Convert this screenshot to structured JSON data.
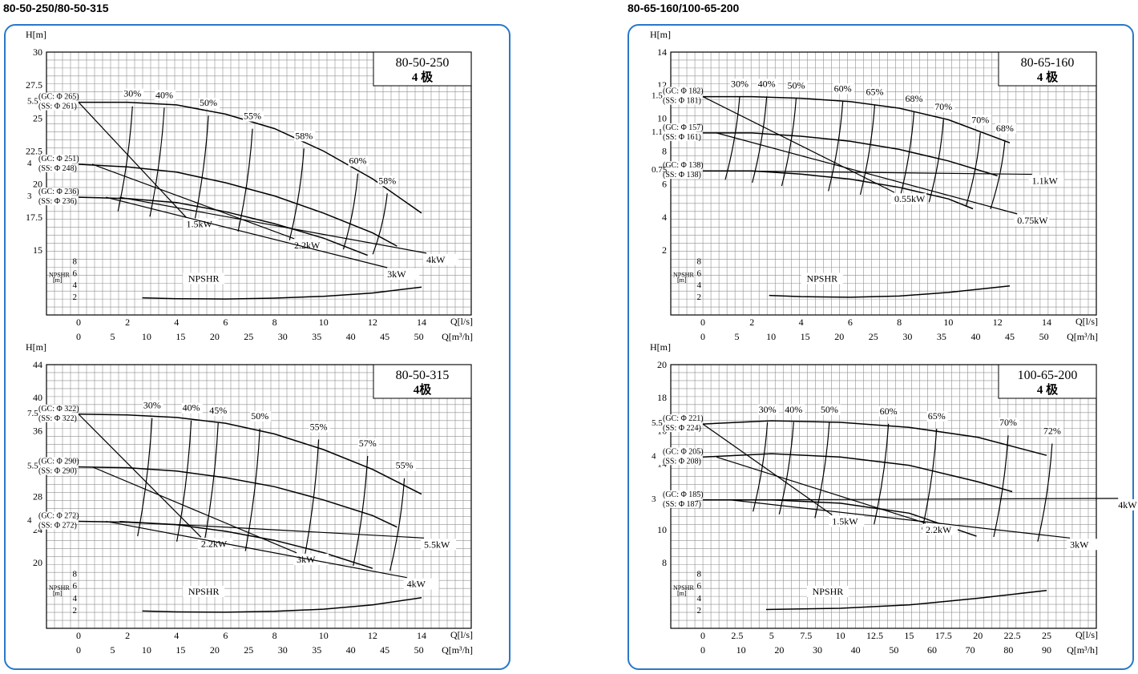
{
  "sections": [
    {
      "title": "80-50-250/80-50-315"
    },
    {
      "title": "80-65-160/100-65-200"
    }
  ],
  "chart_data": [
    {
      "type": "line",
      "model": "80-50-250",
      "poles": "4 极",
      "ylabel": "H[m]",
      "xlabel": "Q[l/s]",
      "xlabel2": "Q[m³/h]",
      "npsh_label": "NPSHR",
      "npsh_unit": "NPSHR [m]",
      "ylim": [
        15,
        30
      ],
      "yticks": [
        "15",
        "17.5",
        "20",
        "22.5",
        "25",
        "27.5",
        "30"
      ],
      "xlim": [
        0,
        14
      ],
      "xticks": [
        "0",
        "2",
        "4",
        "6",
        "8",
        "10",
        "12",
        "14"
      ],
      "x2ticks": [
        "0",
        "5",
        "10",
        "15",
        "20",
        "25",
        "30",
        "35",
        "40",
        "45",
        "50"
      ],
      "x2max": 50.4,
      "npsh_ticks": [
        "2",
        "4",
        "6",
        "8"
      ],
      "series": [
        {
          "label": "5.5",
          "sub": [
            "(GC: Φ 265)",
            "(SS: Φ 261)"
          ],
          "x": [
            0,
            2,
            4,
            6,
            8,
            10,
            12,
            14
          ],
          "y": [
            26.2,
            26.2,
            26,
            25.3,
            24.2,
            22.5,
            20.4,
            17.8
          ]
        },
        {
          "label": "4",
          "sub": [
            "(GC: Φ 251)",
            "(SS: Φ 248)"
          ],
          "x": [
            0,
            2,
            4,
            6,
            8,
            10,
            12,
            13
          ],
          "y": [
            21.5,
            21.3,
            20.9,
            20.1,
            19.1,
            17.8,
            16.3,
            15.3
          ]
        },
        {
          "label": "3",
          "sub": [
            "(GC: Φ 236)",
            "(SS: Φ 236)"
          ],
          "x": [
            0,
            2,
            4,
            6,
            8,
            10,
            11.8
          ],
          "y": [
            19,
            18.9,
            18.6,
            17.9,
            17,
            15.9,
            14.6
          ]
        }
      ],
      "efficiency": [
        {
          "label": "30%",
          "x": 2.2,
          "y": 26.5
        },
        {
          "label": "40%",
          "x": 3.5,
          "y": 26.4
        },
        {
          "label": "50%",
          "x": 5.3,
          "y": 25.8
        },
        {
          "label": "55%",
          "x": 7.1,
          "y": 24.8
        },
        {
          "label": "58%",
          "x": 9.2,
          "y": 23.3
        },
        {
          "label": "60%",
          "x": 11.4,
          "y": 21.4
        },
        {
          "label": "58%",
          "x": 12.6,
          "y": 19.9
        }
      ],
      "power": [
        {
          "label": "1.5kW",
          "x": 4.4,
          "y": 17.1
        },
        {
          "label": "2.2kW",
          "x": 8.8,
          "y": 15.5
        },
        {
          "label": "3kW",
          "x": 12.6,
          "y": 13.3
        },
        {
          "label": "4kW",
          "x": 14.2,
          "y": 14.4
        }
      ],
      "npsh": {
        "x": [
          2.6,
          4,
          6,
          8,
          10,
          12,
          14
        ],
        "y": [
          1.8,
          1.65,
          1.6,
          1.75,
          2.05,
          2.6,
          3.6
        ]
      }
    },
    {
      "type": "line",
      "model": "80-50-315",
      "poles": "4极",
      "ylabel": "H[m]",
      "xlabel": "Q[l/s]",
      "xlabel2": "Q[m³/h]",
      "npsh_label": "NPSHR",
      "npsh_unit": "NPSHR [m]",
      "ylim": [
        20,
        44
      ],
      "yticks": [
        "20",
        "24",
        "28",
        "32",
        "36",
        "40",
        "44"
      ],
      "xlim": [
        0,
        14
      ],
      "xticks": [
        "0",
        "2",
        "4",
        "6",
        "8",
        "10",
        "12",
        "14"
      ],
      "x2ticks": [
        "0",
        "5",
        "10",
        "15",
        "20",
        "25",
        "30",
        "35",
        "40",
        "45",
        "50"
      ],
      "x2max": 50.4,
      "npsh_ticks": [
        "2",
        "4",
        "6",
        "8"
      ],
      "series": [
        {
          "label": "7.5",
          "sub": [
            "(GC: Φ 322)",
            "(SS: Φ 322)"
          ],
          "x": [
            0,
            2,
            4,
            6,
            8,
            10,
            12,
            14
          ],
          "y": [
            38,
            37.9,
            37.6,
            36.9,
            35.6,
            33.7,
            31.3,
            28.3
          ]
        },
        {
          "label": "5.5",
          "sub": [
            "(GC: Φ 290)",
            "(SS: Φ 290)"
          ],
          "x": [
            0,
            2,
            4,
            6,
            8,
            10,
            12,
            13
          ],
          "y": [
            31.6,
            31.5,
            31.1,
            30.3,
            29.2,
            27.6,
            25.7,
            24.3
          ]
        },
        {
          "label": "4",
          "sub": [
            "(GC: Φ 272)",
            "(SS: Φ 272)"
          ],
          "x": [
            0,
            2,
            4,
            6,
            8,
            10,
            12
          ],
          "y": [
            25,
            24.9,
            24.6,
            23.8,
            22.7,
            21.2,
            19.3
          ]
        }
      ],
      "efficiency": [
        {
          "label": "30%",
          "x": 3,
          "y": 38.5
        },
        {
          "label": "40%",
          "x": 4.6,
          "y": 38.2
        },
        {
          "label": "45%",
          "x": 5.7,
          "y": 37.9
        },
        {
          "label": "50%",
          "x": 7.4,
          "y": 37.2
        },
        {
          "label": "55%",
          "x": 9.8,
          "y": 35.9
        },
        {
          "label": "57%",
          "x": 11.8,
          "y": 33.9
        },
        {
          "label": "55%",
          "x": 13.3,
          "y": 31.2
        }
      ],
      "power": [
        {
          "label": "2.2kW",
          "x": 5,
          "y": 22.5
        },
        {
          "label": "3kW",
          "x": 8.9,
          "y": 20.6
        },
        {
          "label": "4kW",
          "x": 13.4,
          "y": 17.6
        },
        {
          "label": "5.5kW",
          "x": 14.1,
          "y": 22.4
        }
      ],
      "npsh": {
        "x": [
          2.6,
          4,
          6,
          8,
          10,
          12,
          14
        ],
        "y": [
          1.8,
          1.65,
          1.6,
          1.75,
          2.1,
          2.8,
          4
        ]
      }
    },
    {
      "type": "line",
      "model": "80-65-160",
      "poles": "4 极",
      "ylabel": "H[m]",
      "xlabel": "Q[l/s]",
      "xlabel2": "Q[m³/h]",
      "npsh_label": "NPSHR",
      "npsh_unit": "NPSHR [m]",
      "ylim": [
        2,
        14
      ],
      "yticks": [
        "2",
        "4",
        "6",
        "8",
        "10",
        "12",
        "14"
      ],
      "xlim": [
        0,
        14
      ],
      "xticks": [
        "0",
        "2",
        "4",
        "6",
        "8",
        "10",
        "12",
        "14"
      ],
      "x2ticks": [
        "0",
        "5",
        "10",
        "15",
        "20",
        "25",
        "30",
        "35",
        "40",
        "45",
        "50"
      ],
      "x2max": 50.4,
      "npsh_ticks": [
        "2",
        "4",
        "6",
        "8"
      ],
      "series": [
        {
          "label": "1.5",
          "sub": [
            "(GC: Φ 182)",
            "(SS: Φ 181)"
          ],
          "x": [
            0,
            2,
            4,
            6,
            8,
            10,
            12.5
          ],
          "y": [
            11.3,
            11.3,
            11.2,
            11,
            10.6,
            9.9,
            8.5
          ]
        },
        {
          "label": "1.1",
          "sub": [
            "(GC: Φ 157)",
            "(SS: Φ 161)"
          ],
          "x": [
            0,
            2,
            4,
            6,
            8,
            10,
            12
          ],
          "y": [
            9.1,
            9.1,
            8.9,
            8.6,
            8.1,
            7.4,
            6.5
          ]
        },
        {
          "label": "0.75",
          "sub": [
            "(GC: Φ 138)",
            "(SS: Φ 138)"
          ],
          "x": [
            0,
            2,
            4,
            6,
            8,
            10,
            11
          ],
          "y": [
            6.8,
            6.8,
            6.6,
            6.3,
            5.8,
            5.1,
            4.5
          ]
        }
      ],
      "efficiency": [
        {
          "label": "30%",
          "x": 1.5,
          "y": 11.8
        },
        {
          "label": "40%",
          "x": 2.6,
          "y": 11.8
        },
        {
          "label": "50%",
          "x": 3.8,
          "y": 11.7
        },
        {
          "label": "60%",
          "x": 5.7,
          "y": 11.5
        },
        {
          "label": "65%",
          "x": 7,
          "y": 11.3
        },
        {
          "label": "68%",
          "x": 8.6,
          "y": 10.9
        },
        {
          "label": "70%",
          "x": 9.8,
          "y": 10.4
        },
        {
          "label": "70%",
          "x": 11.3,
          "y": 9.6
        },
        {
          "label": "68%",
          "x": 12.3,
          "y": 9.1
        }
      ],
      "power": [
        {
          "label": "0.55kW",
          "x": 7.8,
          "y": 5.2
        },
        {
          "label": "0.75kW",
          "x": 12.8,
          "y": 3.9
        },
        {
          "label": "1.1kW",
          "x": 13.4,
          "y": 6.3
        }
      ],
      "npsh": {
        "x": [
          2.7,
          4,
          6,
          8,
          10,
          12.5
        ],
        "y": [
          2.2,
          2,
          1.9,
          2.1,
          2.7,
          3.8
        ]
      }
    },
    {
      "type": "line",
      "model": "100-65-200",
      "poles": "4 极",
      "ylabel": "H[m]",
      "xlabel": "Q[l/s]",
      "xlabel2": "Q[m³/h]",
      "npsh_label": "NPSHR",
      "npsh_unit": "NPSHR [m]",
      "ylim": [
        8,
        20
      ],
      "yticks": [
        "8",
        "10",
        "12",
        "14",
        "16",
        "18",
        "20"
      ],
      "xlim": [
        0,
        25
      ],
      "xticks": [
        "0",
        "2.5",
        "5",
        "7.5",
        "10",
        "12.5",
        "15",
        "17.5",
        "20",
        "22.5",
        "25"
      ],
      "x2ticks": [
        "0",
        "10",
        "20",
        "30",
        "40",
        "50",
        "60",
        "70",
        "80",
        "90"
      ],
      "x2max": 90,
      "npsh_ticks": [
        "2",
        "4",
        "6",
        "8"
      ],
      "series": [
        {
          "label": "5.5",
          "sub": [
            "(GC: Φ 221)",
            "(SS: Φ 224)"
          ],
          "x": [
            0,
            5,
            10,
            15,
            20,
            25
          ],
          "y": [
            16.4,
            16.6,
            16.5,
            16.2,
            15.6,
            14.5
          ]
        },
        {
          "label": "4",
          "sub": [
            "(GC: Φ 205)",
            "(SS: Φ 208)"
          ],
          "x": [
            0,
            5,
            10,
            15,
            20,
            22.5
          ],
          "y": [
            14.4,
            14.6,
            14.4,
            13.9,
            12.9,
            12.3
          ]
        },
        {
          "label": "3",
          "sub": [
            "(GC: Φ 185)",
            "(SS: Φ 187)"
          ],
          "x": [
            0,
            5,
            10,
            15,
            19.9
          ],
          "y": [
            11.8,
            11.8,
            11.6,
            11,
            9.6
          ]
        }
      ],
      "efficiency": [
        {
          "label": "30%",
          "x": 4.7,
          "y": 17
        },
        {
          "label": "40%",
          "x": 6.6,
          "y": 17
        },
        {
          "label": "50%",
          "x": 9.2,
          "y": 17
        },
        {
          "label": "60%",
          "x": 13.5,
          "y": 16.9
        },
        {
          "label": "65%",
          "x": 17,
          "y": 16.6
        },
        {
          "label": "70%",
          "x": 22.2,
          "y": 16.2
        },
        {
          "label": "72%",
          "x": 25.4,
          "y": 15.7
        }
      ],
      "power": [
        {
          "label": "1.5kW",
          "x": 9.4,
          "y": 10.6
        },
        {
          "label": "2.2kW",
          "x": 16.2,
          "y": 10.1
        },
        {
          "label": "3kW",
          "x": 26.7,
          "y": 9.2
        },
        {
          "label": "4kW",
          "x": 30.2,
          "y": 11.6
        }
      ],
      "npsh": {
        "x": [
          4.6,
          10,
          15,
          20,
          25
        ],
        "y": [
          2.05,
          2.25,
          2.8,
          3.9,
          5.2
        ]
      }
    }
  ]
}
